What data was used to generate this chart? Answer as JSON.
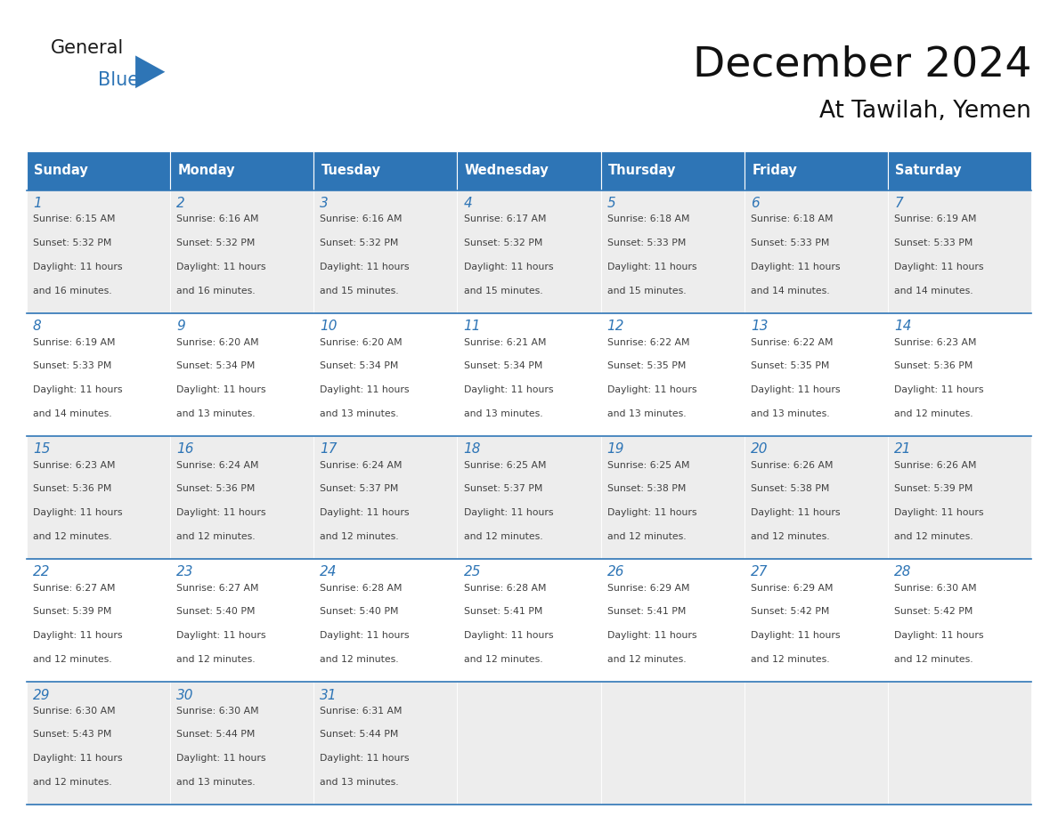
{
  "title": "December 2024",
  "subtitle": "At Tawilah, Yemen",
  "header_color": "#2E75B6",
  "header_text_color": "#FFFFFF",
  "cell_bg_even": "#EDEDED",
  "cell_bg_odd": "#FFFFFF",
  "day_number_color": "#2E75B6",
  "text_color": "#404040",
  "border_color": "#2E75B6",
  "logo_general_color": "#1a1a1a",
  "logo_blue_color": "#2E75B6",
  "logo_triangle_color": "#2E75B6",
  "days_of_week": [
    "Sunday",
    "Monday",
    "Tuesday",
    "Wednesday",
    "Thursday",
    "Friday",
    "Saturday"
  ],
  "weeks": [
    [
      {
        "day": "1",
        "sunrise": "6:15 AM",
        "sunset": "5:32 PM",
        "daylight": "11 hours and 16 minutes."
      },
      {
        "day": "2",
        "sunrise": "6:16 AM",
        "sunset": "5:32 PM",
        "daylight": "11 hours and 16 minutes."
      },
      {
        "day": "3",
        "sunrise": "6:16 AM",
        "sunset": "5:32 PM",
        "daylight": "11 hours and 15 minutes."
      },
      {
        "day": "4",
        "sunrise": "6:17 AM",
        "sunset": "5:32 PM",
        "daylight": "11 hours and 15 minutes."
      },
      {
        "day": "5",
        "sunrise": "6:18 AM",
        "sunset": "5:33 PM",
        "daylight": "11 hours and 15 minutes."
      },
      {
        "day": "6",
        "sunrise": "6:18 AM",
        "sunset": "5:33 PM",
        "daylight": "11 hours and 14 minutes."
      },
      {
        "day": "7",
        "sunrise": "6:19 AM",
        "sunset": "5:33 PM",
        "daylight": "11 hours and 14 minutes."
      }
    ],
    [
      {
        "day": "8",
        "sunrise": "6:19 AM",
        "sunset": "5:33 PM",
        "daylight": "11 hours and 14 minutes."
      },
      {
        "day": "9",
        "sunrise": "6:20 AM",
        "sunset": "5:34 PM",
        "daylight": "11 hours and 13 minutes."
      },
      {
        "day": "10",
        "sunrise": "6:20 AM",
        "sunset": "5:34 PM",
        "daylight": "11 hours and 13 minutes."
      },
      {
        "day": "11",
        "sunrise": "6:21 AM",
        "sunset": "5:34 PM",
        "daylight": "11 hours and 13 minutes."
      },
      {
        "day": "12",
        "sunrise": "6:22 AM",
        "sunset": "5:35 PM",
        "daylight": "11 hours and 13 minutes."
      },
      {
        "day": "13",
        "sunrise": "6:22 AM",
        "sunset": "5:35 PM",
        "daylight": "11 hours and 13 minutes."
      },
      {
        "day": "14",
        "sunrise": "6:23 AM",
        "sunset": "5:36 PM",
        "daylight": "11 hours and 12 minutes."
      }
    ],
    [
      {
        "day": "15",
        "sunrise": "6:23 AM",
        "sunset": "5:36 PM",
        "daylight": "11 hours and 12 minutes."
      },
      {
        "day": "16",
        "sunrise": "6:24 AM",
        "sunset": "5:36 PM",
        "daylight": "11 hours and 12 minutes."
      },
      {
        "day": "17",
        "sunrise": "6:24 AM",
        "sunset": "5:37 PM",
        "daylight": "11 hours and 12 minutes."
      },
      {
        "day": "18",
        "sunrise": "6:25 AM",
        "sunset": "5:37 PM",
        "daylight": "11 hours and 12 minutes."
      },
      {
        "day": "19",
        "sunrise": "6:25 AM",
        "sunset": "5:38 PM",
        "daylight": "11 hours and 12 minutes."
      },
      {
        "day": "20",
        "sunrise": "6:26 AM",
        "sunset": "5:38 PM",
        "daylight": "11 hours and 12 minutes."
      },
      {
        "day": "21",
        "sunrise": "6:26 AM",
        "sunset": "5:39 PM",
        "daylight": "11 hours and 12 minutes."
      }
    ],
    [
      {
        "day": "22",
        "sunrise": "6:27 AM",
        "sunset": "5:39 PM",
        "daylight": "11 hours and 12 minutes."
      },
      {
        "day": "23",
        "sunrise": "6:27 AM",
        "sunset": "5:40 PM",
        "daylight": "11 hours and 12 minutes."
      },
      {
        "day": "24",
        "sunrise": "6:28 AM",
        "sunset": "5:40 PM",
        "daylight": "11 hours and 12 minutes."
      },
      {
        "day": "25",
        "sunrise": "6:28 AM",
        "sunset": "5:41 PM",
        "daylight": "11 hours and 12 minutes."
      },
      {
        "day": "26",
        "sunrise": "6:29 AM",
        "sunset": "5:41 PM",
        "daylight": "11 hours and 12 minutes."
      },
      {
        "day": "27",
        "sunrise": "6:29 AM",
        "sunset": "5:42 PM",
        "daylight": "11 hours and 12 minutes."
      },
      {
        "day": "28",
        "sunrise": "6:30 AM",
        "sunset": "5:42 PM",
        "daylight": "11 hours and 12 minutes."
      }
    ],
    [
      {
        "day": "29",
        "sunrise": "6:30 AM",
        "sunset": "5:43 PM",
        "daylight": "11 hours and 12 minutes."
      },
      {
        "day": "30",
        "sunrise": "6:30 AM",
        "sunset": "5:44 PM",
        "daylight": "11 hours and 13 minutes."
      },
      {
        "day": "31",
        "sunrise": "6:31 AM",
        "sunset": "5:44 PM",
        "daylight": "11 hours and 13 minutes."
      },
      null,
      null,
      null,
      null
    ]
  ],
  "fig_width": 11.88,
  "fig_height": 9.18,
  "dpi": 100
}
